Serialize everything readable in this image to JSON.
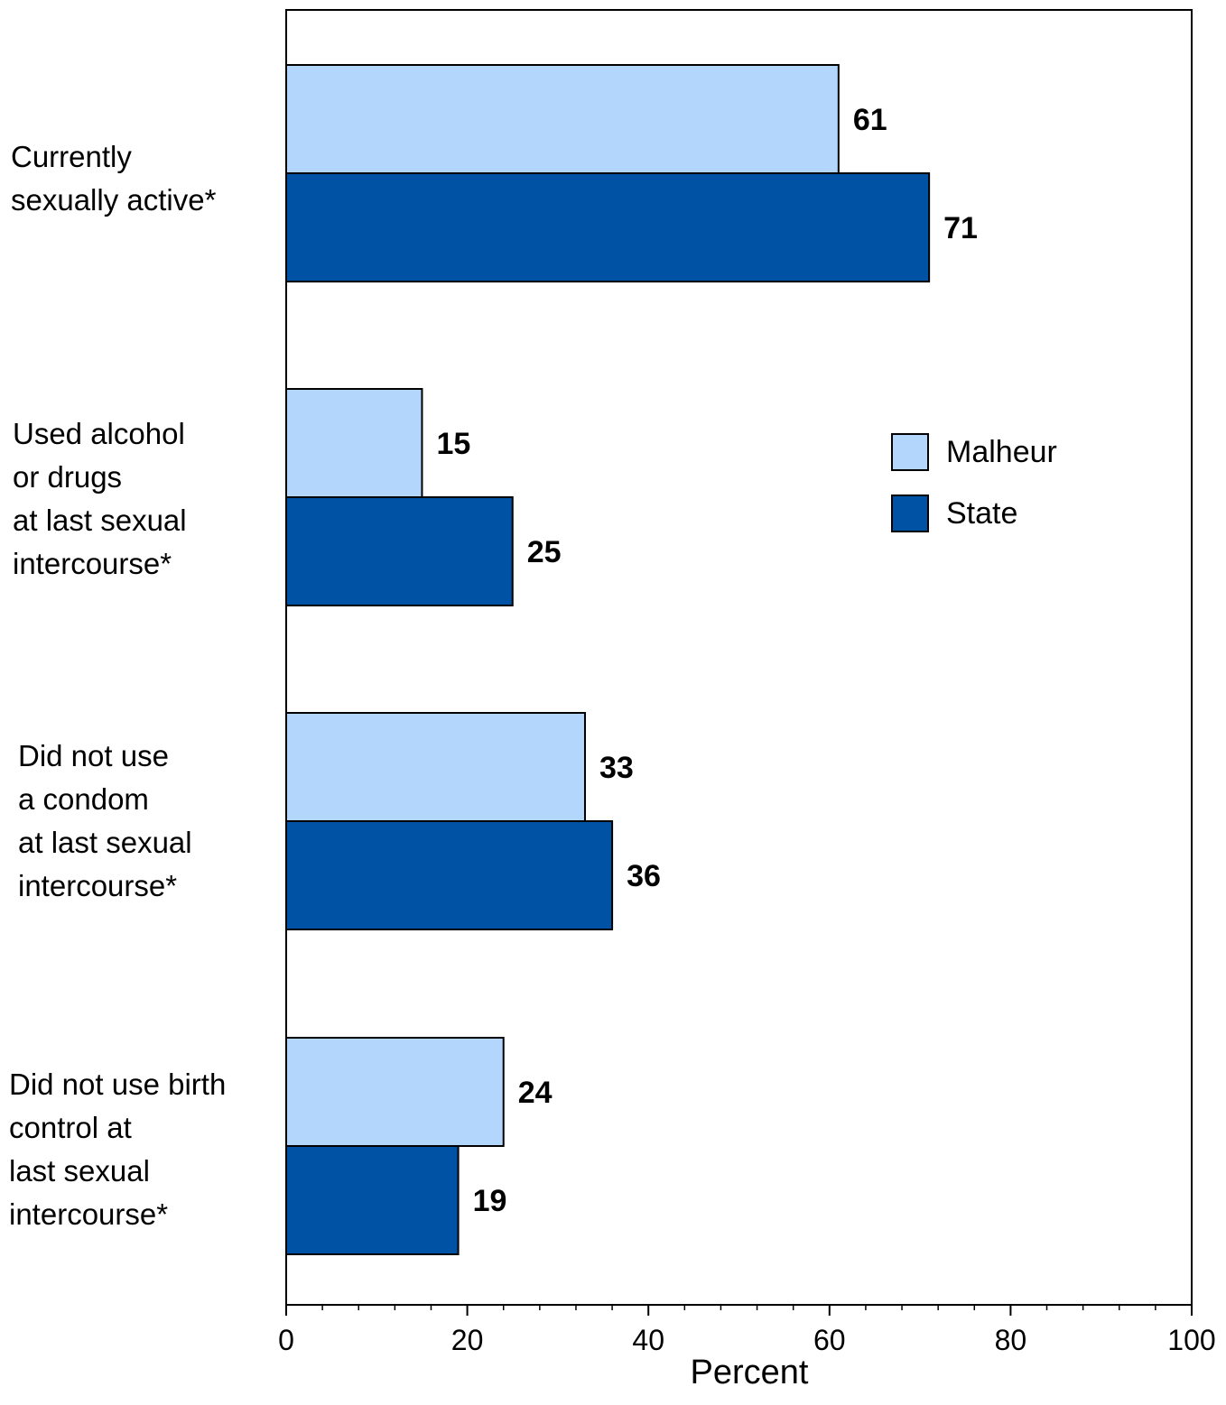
{
  "chart_data": {
    "type": "bar",
    "orientation": "horizontal",
    "categories": [
      [
        "Currently",
        "sexually active*"
      ],
      [
        "Used alcohol",
        "or drugs",
        "at last sexual",
        "intercourse*"
      ],
      [
        "Did not use",
        "a condom",
        "at last sexual",
        "intercourse*"
      ],
      [
        "Did not use birth",
        "control at",
        "last sexual",
        "intercourse*"
      ]
    ],
    "series": [
      {
        "name": "Malheur",
        "color": "#b3d7fc",
        "values": [
          61,
          15,
          33,
          24
        ]
      },
      {
        "name": "State",
        "color": "#0052a5",
        "values": [
          71,
          25,
          36,
          19
        ]
      }
    ],
    "xlabel": "Percent",
    "xlim": [
      0,
      100
    ],
    "xticks": [
      0,
      20,
      40,
      60,
      80,
      100
    ],
    "grid": false,
    "legend_position": "right"
  }
}
